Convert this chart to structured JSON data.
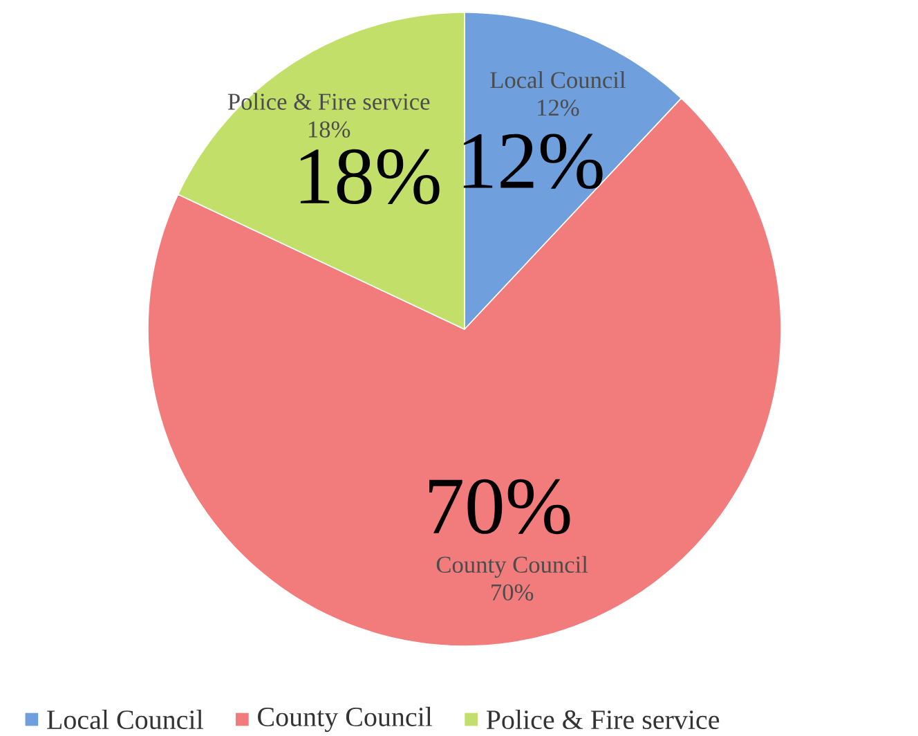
{
  "chart_data": {
    "type": "pie",
    "categories": [
      "Local Council",
      "County Council",
      "Police & Fire service"
    ],
    "values": [
      12,
      70,
      18
    ],
    "colors": [
      "#6f9fdc",
      "#f27c7c",
      "#c2df6a"
    ],
    "value_labels": [
      "12%",
      "70%",
      "18%"
    ],
    "annotations": [
      "12%",
      "70%",
      "18%"
    ],
    "legend": "bottom"
  }
}
